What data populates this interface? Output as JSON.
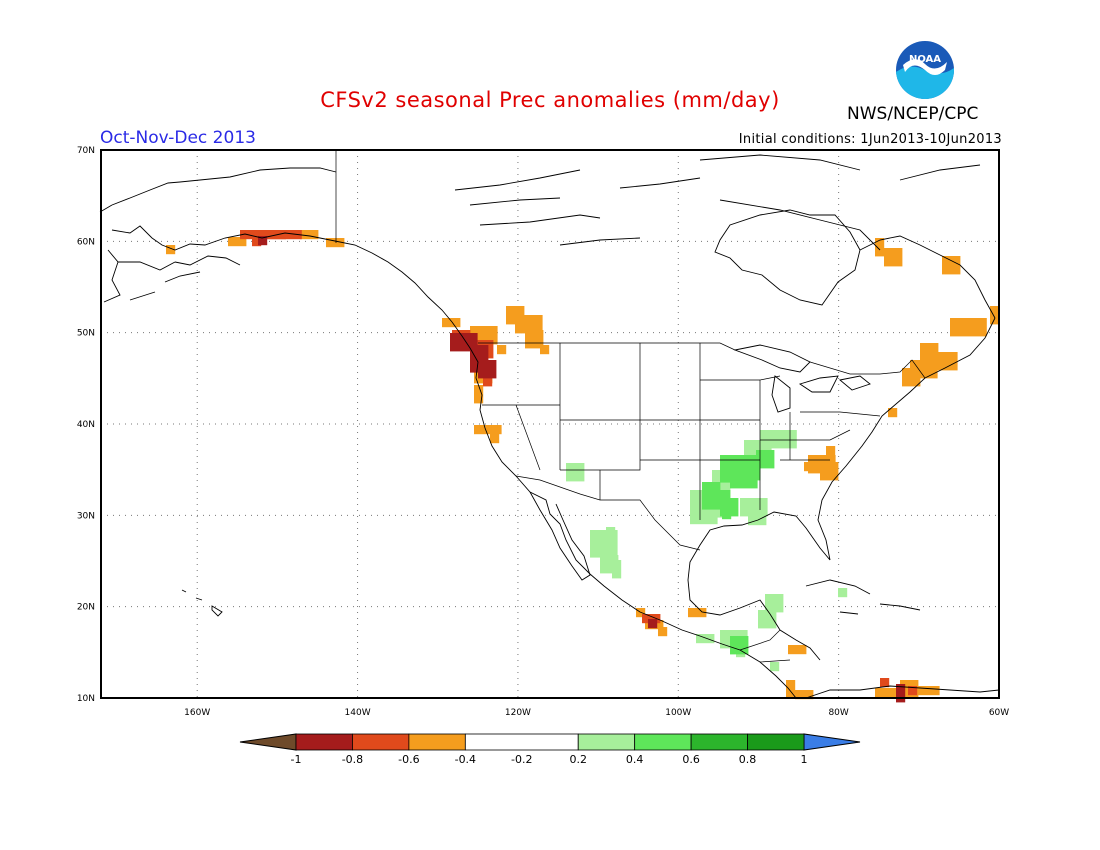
{
  "title": "CFSv2 seasonal Prec anomalies (mm/day)",
  "season": "Oct-Nov-Dec 2013",
  "initial_conditions": "Initial conditions: 1Jun2013-10Jun2013",
  "agency": "NWS/NCEP/CPC",
  "logo": {
    "icon": "noaa-logo-icon",
    "text": "NOAA"
  },
  "map": {
    "lon_range": [
      -172,
      -60
    ],
    "lat_range": [
      10,
      70
    ],
    "lon_ticks": [
      "160W",
      "140W",
      "120W",
      "100W",
      "80W",
      "60W"
    ],
    "lat_ticks": [
      "10N",
      "20N",
      "30N",
      "40N",
      "50N",
      "60N",
      "70N"
    ],
    "grid": "dotted"
  },
  "colorbar": {
    "labels": [
      "-1",
      "-0.8",
      "-0.6",
      "-0.4",
      "-0.2",
      "0.2",
      "0.4",
      "0.6",
      "0.8",
      "1"
    ],
    "colors": [
      "#a51c1c",
      "#e04a1c",
      "#f59d1e",
      "#ffffff",
      "#a7ef9b",
      "#5ee65a",
      "#2cb52c",
      "#1a9a1a"
    ],
    "under_color": "#6e4a2a",
    "over_color": "#3a7de6"
  },
  "anomaly_colors": {
    "dark_red": "#a51c1c",
    "red": "#e04a1c",
    "orange": "#f59d1e",
    "light_green": "#a7ef9b",
    "green": "#5ee65a"
  }
}
